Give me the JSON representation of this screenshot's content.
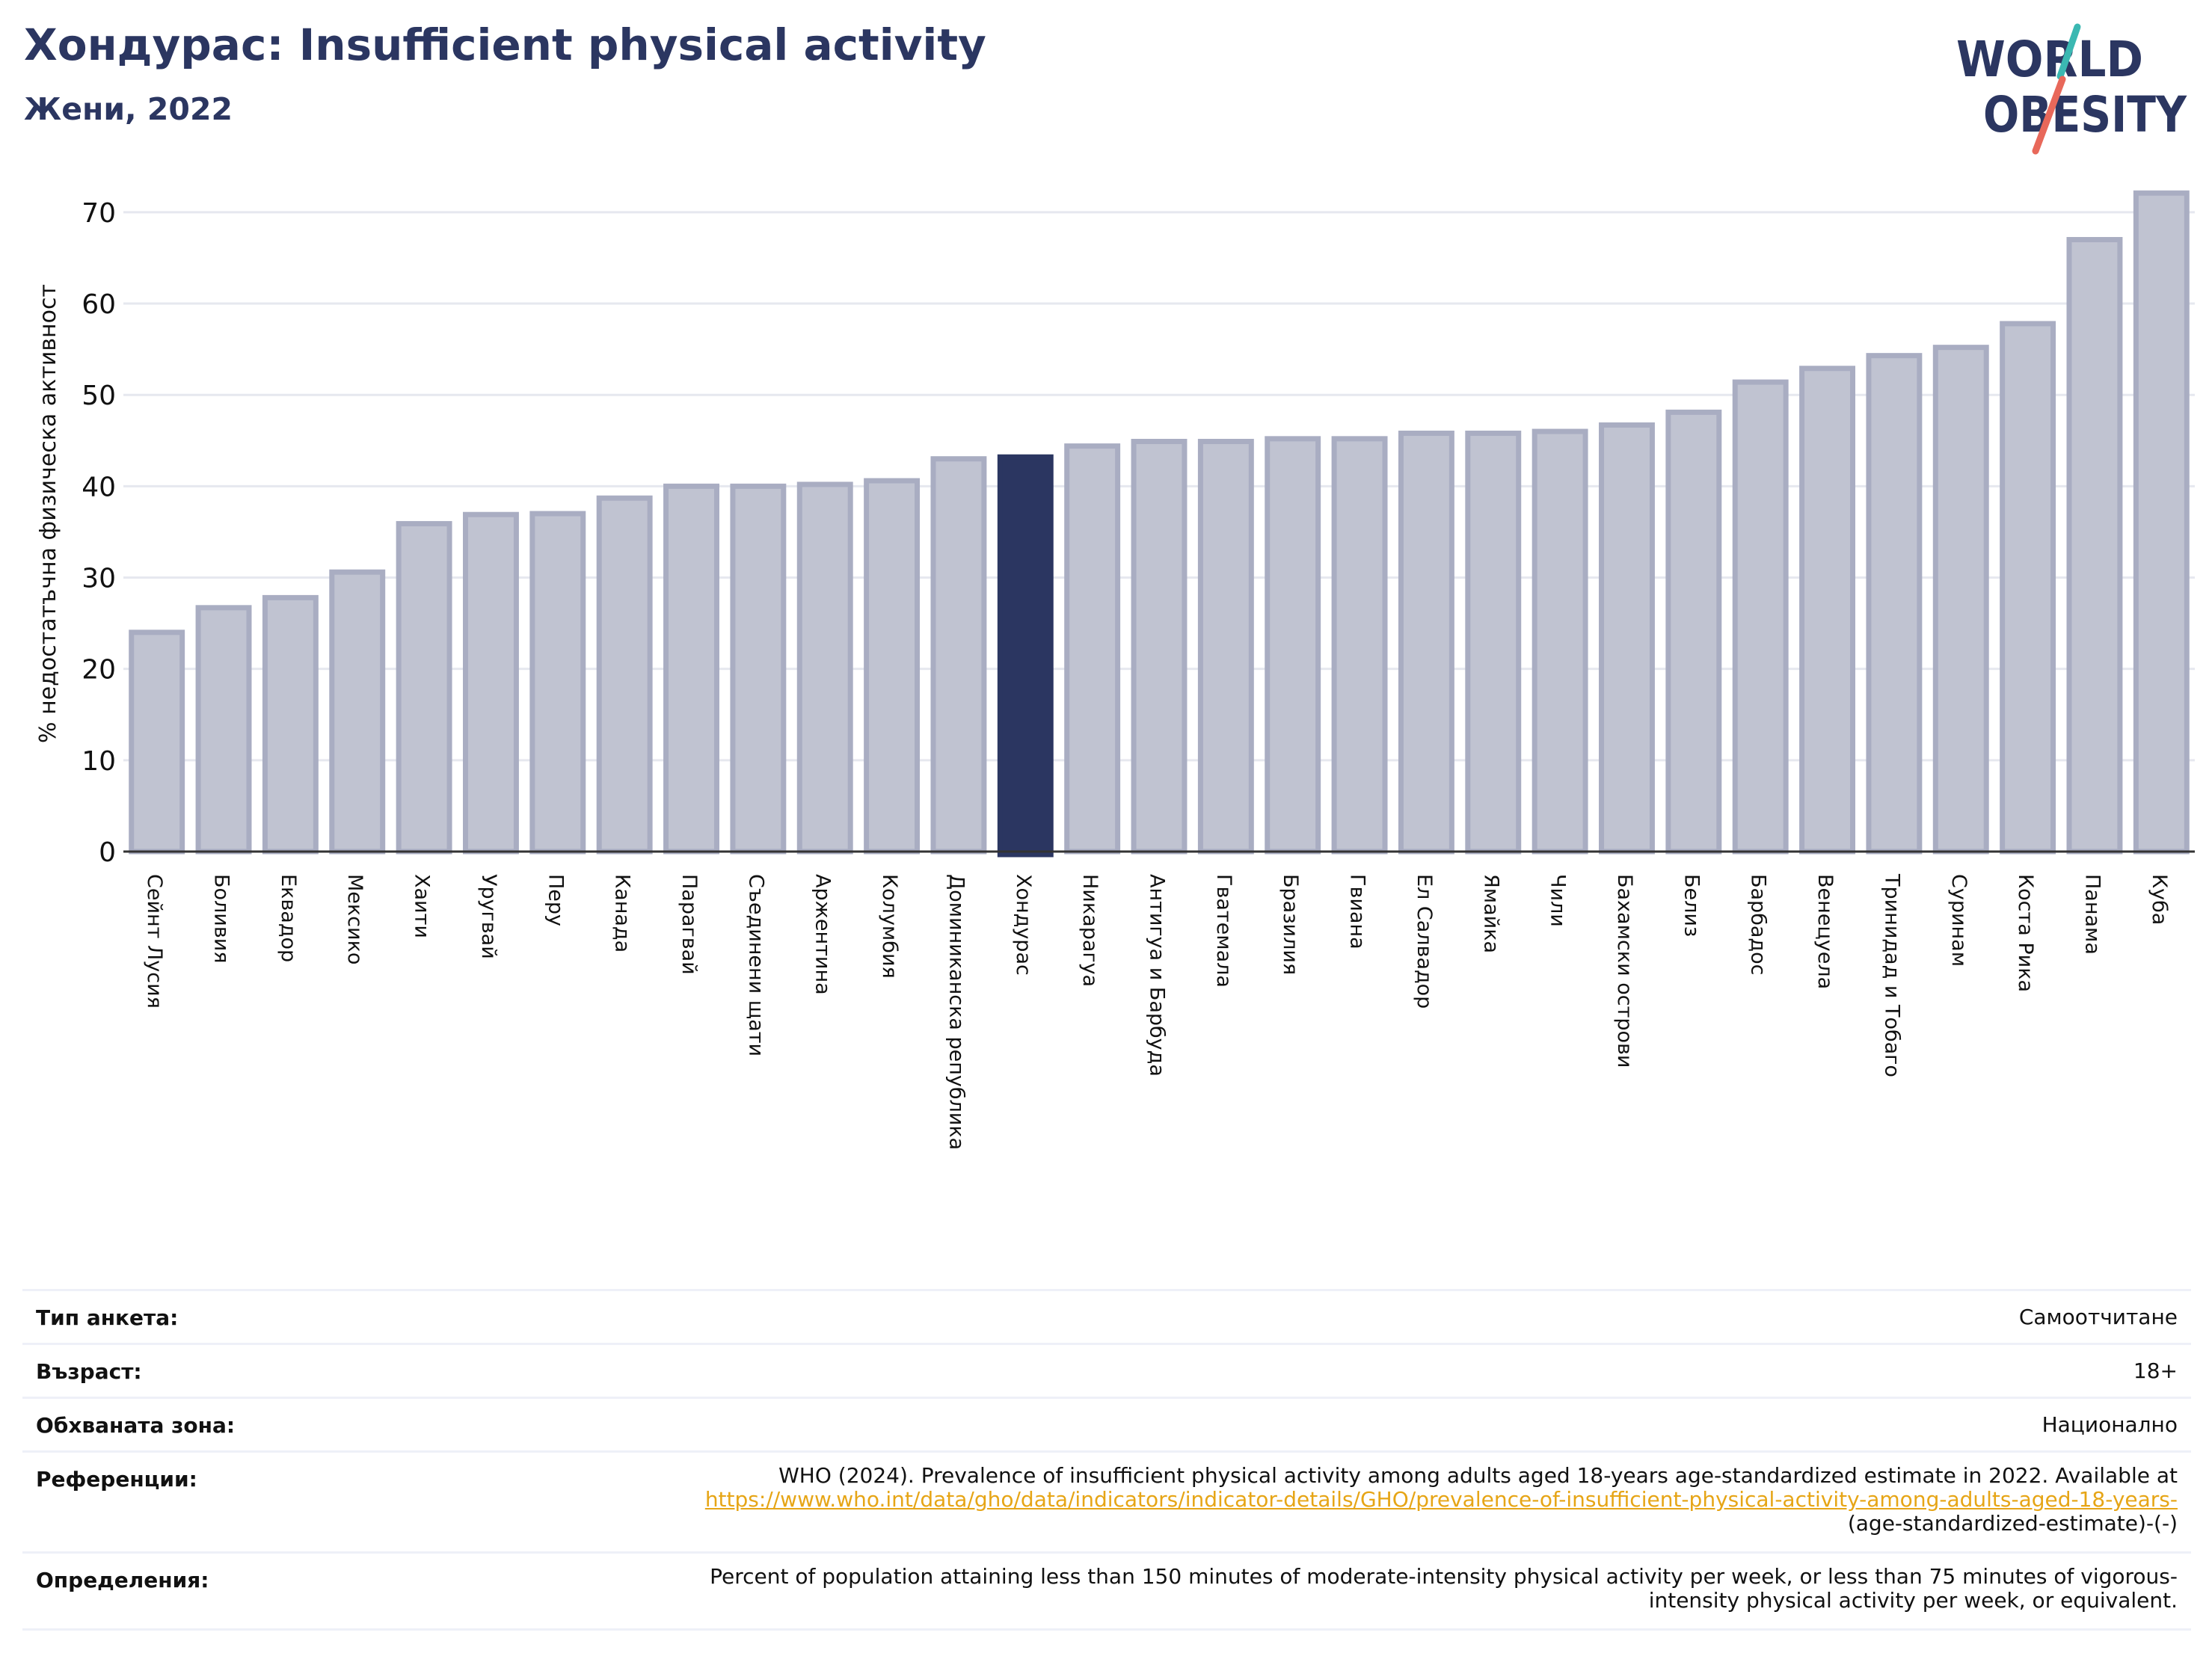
{
  "header": {
    "title": "Хондурас: Insufficient physical activity",
    "subtitle": "Жени, 2022"
  },
  "logo": {
    "line1": "WORLD",
    "line2": "OBESITY"
  },
  "colors": {
    "bar_fill": "#c0c3d1",
    "bar_stroke": "#a9adc2",
    "highlight": "#2b3661",
    "title": "#2b3661",
    "grid": "#e6e8ef",
    "link": "#e6a516",
    "logo_teal": "#3bb8b2",
    "logo_coral": "#e8685a"
  },
  "chart_data": {
    "type": "bar",
    "ylabel": "% недостатъчна физическа активност",
    "ylim": [
      0,
      74
    ],
    "yticks": [
      0,
      10,
      20,
      30,
      40,
      50,
      60,
      70
    ],
    "grid": true,
    "highlight": "Хондурас",
    "categories": [
      "Сейнт Лусия",
      "Боливия",
      "Еквадор",
      "Мексико",
      "Хаити",
      "Уругвай",
      "Перу",
      "Канада",
      "Парагвай",
      "Съединени щати",
      "Аржентина",
      "Колумбия",
      "Доминиканска република",
      "Хондурас",
      "Никарагуа",
      "Антигуа и Барбуда",
      "Гватемала",
      "Бразилия",
      "Гвиана",
      "Ел Салвадор",
      "Ямайка",
      "Чили",
      "Бахамски острови",
      "Белиз",
      "Барбадос",
      "Венецуела",
      "Тринидад и Тобаго",
      "Суринам",
      "Коста Рика",
      "Панама",
      "Куба"
    ],
    "values": [
      24.0,
      26.7,
      27.8,
      30.6,
      35.9,
      36.9,
      37.0,
      38.7,
      40.0,
      40.0,
      40.2,
      40.6,
      43.0,
      43.2,
      44.4,
      44.9,
      44.9,
      45.2,
      45.2,
      45.8,
      45.8,
      46.0,
      46.7,
      48.1,
      51.4,
      52.9,
      54.3,
      55.2,
      57.8,
      67.0,
      72.1
    ]
  },
  "info": {
    "rows": [
      {
        "label": "Тип анкета:",
        "value": "Самоотчитане"
      },
      {
        "label": "Възраст:",
        "value": "18+"
      },
      {
        "label": "Обхваната зона:",
        "value": "Национално"
      }
    ],
    "references": {
      "label": "Референции:",
      "text1": "WHO (2024). Prevalence of insufficient physical activity among adults aged 18-years age-standardized estimate in 2022. Available at",
      "link": "https://www.who.int/data/gho/data/indicators/indicator-details/GHO/prevalence-of-insufficient-physical-activity-among-adults-aged-18-years-",
      "text2": "(age-standardized-estimate)-(-)"
    },
    "definitions": {
      "label": "Определения:",
      "line1": "Percent of population attaining less than 150 minutes of moderate-intensity physical activity per week, or less than 75 minutes of vigorous-",
      "line2": "intensity physical activity per week, or equivalent."
    }
  }
}
